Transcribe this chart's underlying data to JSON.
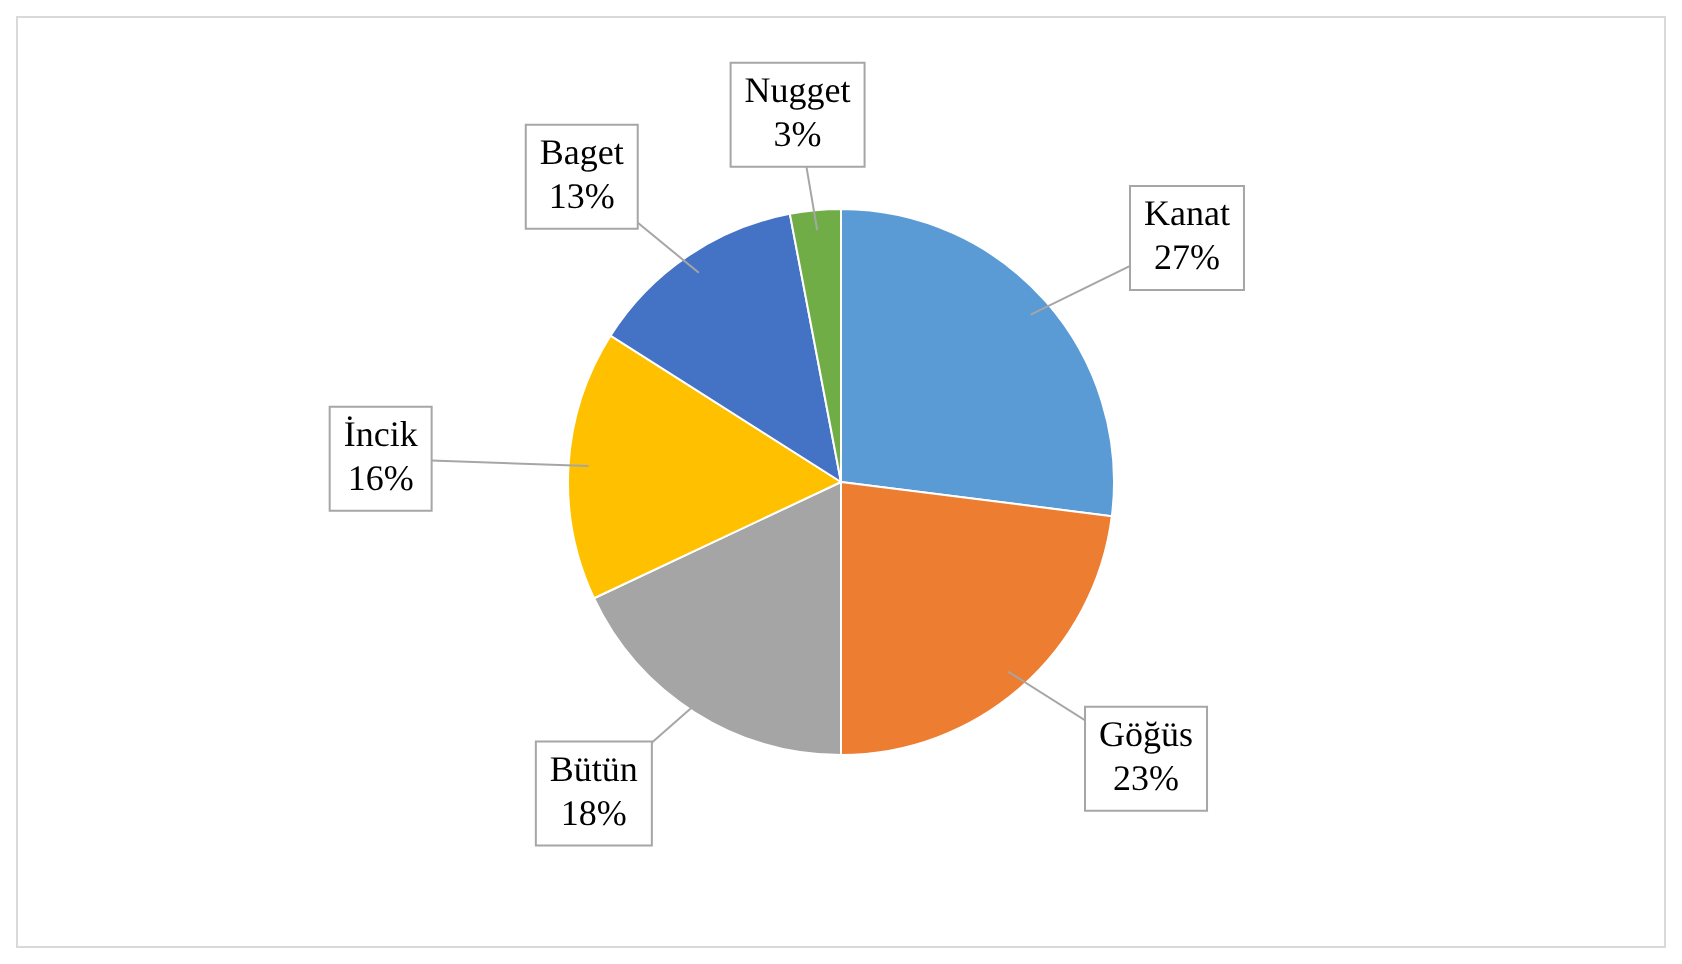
{
  "chart_data": {
    "type": "pie",
    "categories": [
      "Kanat",
      "Göğüs",
      "Bütün",
      "İncik",
      "Baget",
      "Nugget"
    ],
    "values": [
      27,
      23,
      18,
      16,
      13,
      3
    ],
    "value_labels": [
      "27%",
      "23%",
      "18%",
      "16%",
      "13%",
      "3%"
    ],
    "colors": [
      "#5b9bd5",
      "#ed7d31",
      "#a5a5a5",
      "#ffc000",
      "#4472c4",
      "#70ad47"
    ],
    "legend": false
  }
}
